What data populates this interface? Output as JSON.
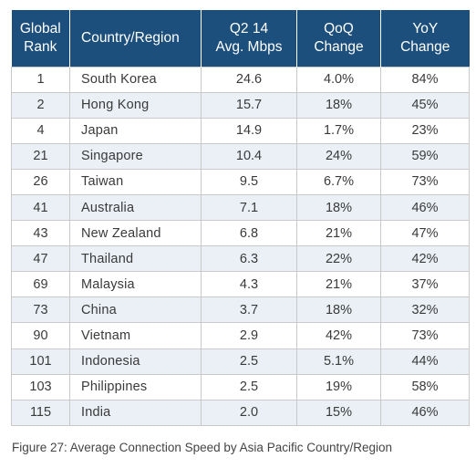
{
  "table": {
    "headers": {
      "rank": [
        "Global",
        "Rank"
      ],
      "country": "Country/Region",
      "speed": [
        "Q2 14",
        "Avg. Mbps"
      ],
      "qoq": [
        "QoQ",
        "Change"
      ],
      "yoy": [
        "YoY",
        "Change"
      ]
    },
    "rows": [
      {
        "rank": "1",
        "country": "South Korea",
        "speed": "24.6",
        "qoq": "4.0%",
        "yoy": "84%"
      },
      {
        "rank": "2",
        "country": "Hong Kong",
        "speed": "15.7",
        "qoq": "18%",
        "yoy": "45%"
      },
      {
        "rank": "4",
        "country": "Japan",
        "speed": "14.9",
        "qoq": "1.7%",
        "yoy": "23%"
      },
      {
        "rank": "21",
        "country": "Singapore",
        "speed": "10.4",
        "qoq": "24%",
        "yoy": "59%"
      },
      {
        "rank": "26",
        "country": "Taiwan",
        "speed": "9.5",
        "qoq": "6.7%",
        "yoy": "73%"
      },
      {
        "rank": "41",
        "country": "Australia",
        "speed": "7.1",
        "qoq": "18%",
        "yoy": "46%"
      },
      {
        "rank": "43",
        "country": "New Zealand",
        "speed": "6.8",
        "qoq": "21%",
        "yoy": "47%"
      },
      {
        "rank": "47",
        "country": "Thailand",
        "speed": "6.3",
        "qoq": "22%",
        "yoy": "42%"
      },
      {
        "rank": "69",
        "country": "Malaysia",
        "speed": "4.3",
        "qoq": "21%",
        "yoy": "37%"
      },
      {
        "rank": "73",
        "country": "China",
        "speed": "3.7",
        "qoq": "18%",
        "yoy": "32%"
      },
      {
        "rank": "90",
        "country": "Vietnam",
        "speed": "2.9",
        "qoq": "42%",
        "yoy": "73%"
      },
      {
        "rank": "101",
        "country": "Indonesia",
        "speed": "2.5",
        "qoq": "5.1%",
        "yoy": "44%"
      },
      {
        "rank": "103",
        "country": "Philippines",
        "speed": "2.5",
        "qoq": "19%",
        "yoy": "58%"
      },
      {
        "rank": "115",
        "country": "India",
        "speed": "2.0",
        "qoq": "15%",
        "yoy": "46%"
      }
    ]
  },
  "caption": "Figure 27: Average Connection Speed by Asia Pacific Country/Region",
  "colors": {
    "header_background": "#1c4f7c",
    "header_text": "#ffffff",
    "stripe": "#eaf0f5",
    "border": "#c9c9c9"
  }
}
